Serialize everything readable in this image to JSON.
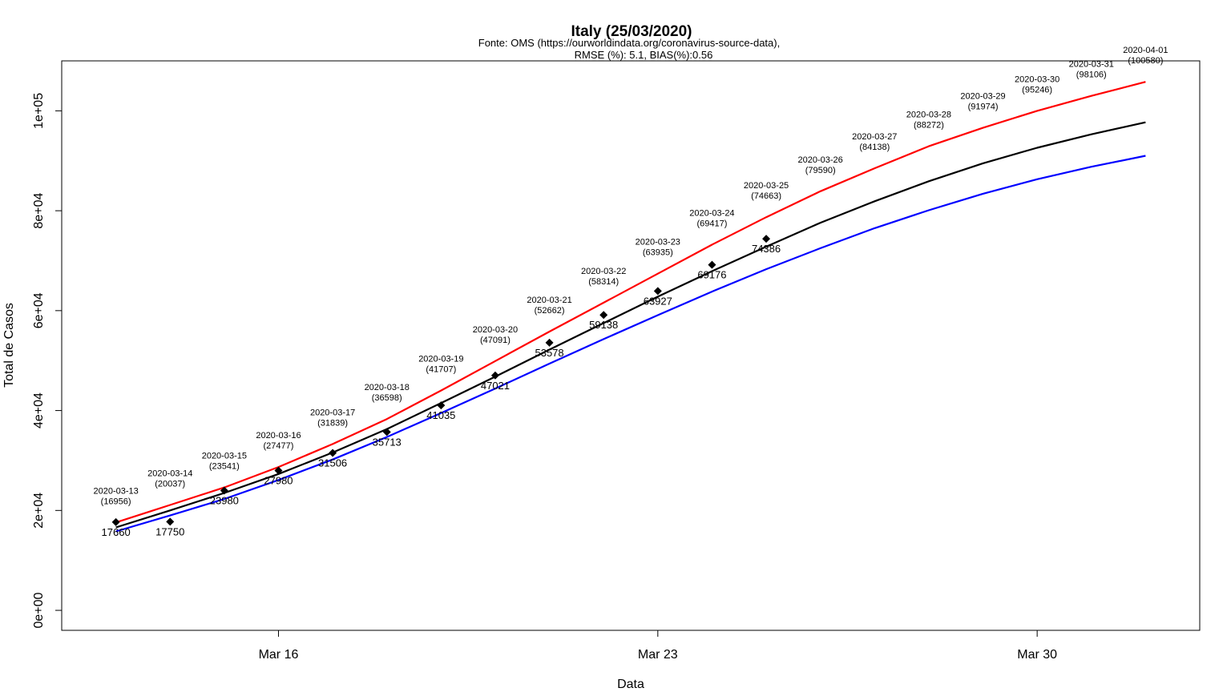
{
  "chart_data": {
    "type": "line",
    "title": "Italy (25/03/2020)",
    "subtitle_lines": [
      "Fonte: OMS (https://ourworldindata.org/coronavirus-source-data),",
      "RMSE (%): 5.1, BIAS(%):0.56"
    ],
    "xlabel": "Data",
    "ylabel": "Total de Casos",
    "x_ticks": [
      {
        "label": "Mar 16",
        "date": "2020-03-16"
      },
      {
        "label": "Mar 23",
        "date": "2020-03-23"
      },
      {
        "label": "Mar 30",
        "date": "2020-03-30"
      }
    ],
    "y_ticks": [
      {
        "label": "0e+00",
        "value": 0
      },
      {
        "label": "2e+04",
        "value": 20000
      },
      {
        "label": "4e+04",
        "value": 40000
      },
      {
        "label": "6e+04",
        "value": 60000
      },
      {
        "label": "8e+04",
        "value": 80000
      },
      {
        "label": "1e+05",
        "value": 100000
      }
    ],
    "xlim": [
      "2020-03-12",
      "2020-04-02"
    ],
    "ylim": [
      -4000,
      110000
    ],
    "dates": [
      "2020-03-13",
      "2020-03-14",
      "2020-03-15",
      "2020-03-16",
      "2020-03-17",
      "2020-03-18",
      "2020-03-19",
      "2020-03-20",
      "2020-03-21",
      "2020-03-22",
      "2020-03-23",
      "2020-03-24",
      "2020-03-25",
      "2020-03-26",
      "2020-03-27",
      "2020-03-28",
      "2020-03-29",
      "2020-03-30",
      "2020-03-31",
      "2020-04-01"
    ],
    "series": [
      {
        "color": "#ff0000",
        "values": [
          17600,
          21100,
          24600,
          28700,
          33300,
          38300,
          44000,
          49900,
          55800,
          61600,
          67400,
          73200,
          78700,
          83900,
          88500,
          92900,
          96600,
          100000,
          103000,
          105800
        ]
      },
      {
        "color": "#000000",
        "values": [
          16600,
          20000,
          23500,
          27300,
          31600,
          36300,
          41500,
          46800,
          52200,
          57500,
          62800,
          67900,
          72800,
          77600,
          81900,
          85900,
          89500,
          92600,
          95300,
          97700
        ]
      },
      {
        "color": "#0000ff",
        "values": [
          15800,
          19000,
          22300,
          26100,
          30200,
          34700,
          39500,
          44400,
          49400,
          54300,
          59100,
          63800,
          68300,
          72500,
          76500,
          80100,
          83400,
          86300,
          88800,
          91000
        ]
      }
    ],
    "observed": [
      {
        "date": "2020-03-13",
        "value": 17660,
        "label": "17660"
      },
      {
        "date": "2020-03-14",
        "value": 17750,
        "label": "17750"
      },
      {
        "date": "2020-03-15",
        "value": 23980,
        "label": "23980"
      },
      {
        "date": "2020-03-16",
        "value": 27980,
        "label": "27980"
      },
      {
        "date": "2020-03-17",
        "value": 31506,
        "label": "31506"
      },
      {
        "date": "2020-03-18",
        "value": 35713,
        "label": "35713"
      },
      {
        "date": "2020-03-19",
        "value": 41035,
        "label": "41035"
      },
      {
        "date": "2020-03-20",
        "value": 47021,
        "label": "47021"
      },
      {
        "date": "2020-03-21",
        "value": 53578,
        "label": "53578"
      },
      {
        "date": "2020-03-22",
        "value": 59138,
        "label": "59138"
      },
      {
        "date": "2020-03-23",
        "value": 63927,
        "label": "63927"
      },
      {
        "date": "2020-03-24",
        "value": 69176,
        "label": "69176"
      },
      {
        "date": "2020-03-25",
        "value": 74386,
        "label": "74386"
      }
    ],
    "annotations": [
      {
        "date": "2020-03-13",
        "line1": "2020-03-13",
        "line2": "(16956)"
      },
      {
        "date": "2020-03-14",
        "line1": "2020-03-14",
        "line2": "(20037)"
      },
      {
        "date": "2020-03-15",
        "line1": "2020-03-15",
        "line2": "(23541)"
      },
      {
        "date": "2020-03-16",
        "line1": "2020-03-16",
        "line2": "(27477)"
      },
      {
        "date": "2020-03-17",
        "line1": "2020-03-17",
        "line2": "(31839)"
      },
      {
        "date": "2020-03-18",
        "line1": "2020-03-18",
        "line2": "(36598)"
      },
      {
        "date": "2020-03-19",
        "line1": "2020-03-19",
        "line2": "(41707)"
      },
      {
        "date": "2020-03-20",
        "line1": "2020-03-20",
        "line2": "(47091)"
      },
      {
        "date": "2020-03-21",
        "line1": "2020-03-21",
        "line2": "(52662)"
      },
      {
        "date": "2020-03-22",
        "line1": "2020-03-22",
        "line2": "(58314)"
      },
      {
        "date": "2020-03-23",
        "line1": "2020-03-23",
        "line2": "(63935)"
      },
      {
        "date": "2020-03-24",
        "line1": "2020-03-24",
        "line2": "(69417)"
      },
      {
        "date": "2020-03-25",
        "line1": "2020-03-25",
        "line2": "(74663)"
      },
      {
        "date": "2020-03-26",
        "line1": "2020-03-26",
        "line2": "(79590)"
      },
      {
        "date": "2020-03-27",
        "line1": "2020-03-27",
        "line2": "(84138)"
      },
      {
        "date": "2020-03-28",
        "line1": "2020-03-28",
        "line2": "(88272)"
      },
      {
        "date": "2020-03-29",
        "line1": "2020-03-29",
        "line2": "(91974)"
      },
      {
        "date": "2020-03-30",
        "line1": "2020-03-30",
        "line2": "(95246)"
      },
      {
        "date": "2020-03-31",
        "line1": "2020-03-31",
        "line2": "(98106)"
      },
      {
        "date": "2020-04-01",
        "line1": "2020-04-01",
        "line2": "(100580)"
      }
    ],
    "grid": false,
    "legend": "none"
  }
}
